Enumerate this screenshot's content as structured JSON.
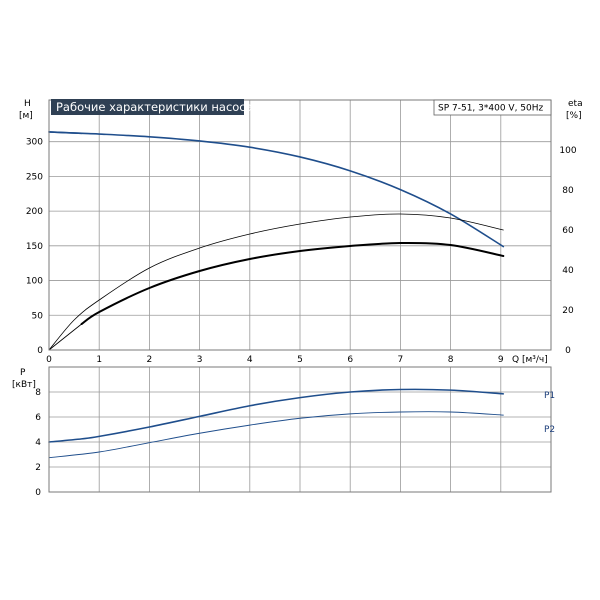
{
  "title": "Рабочие характеристики насоса",
  "model": "SP 7-51, 3*400 V, 50Hz",
  "colors": {
    "pump": "#1f4e8c",
    "efficiency": "#000000",
    "title_bg": "#2f4054",
    "grid": "#9a9a9a"
  },
  "chart_data": [
    {
      "type": "line",
      "x_label": "Q [м³/ч]",
      "x_ticks": [
        0,
        1,
        2,
        3,
        4,
        5,
        6,
        7,
        8,
        9
      ],
      "xlim": [
        0,
        10
      ],
      "y_label": "H",
      "y_unit": "[м]",
      "y_ticks": [
        0,
        50,
        100,
        150,
        200,
        250,
        300
      ],
      "ylim": [
        0,
        360
      ],
      "y2_label": "eta",
      "y2_unit": "[%]",
      "y2_ticks": [
        0,
        20,
        40,
        60,
        80,
        100
      ],
      "y2lim": [
        0,
        125
      ],
      "grid": true,
      "series": [
        {
          "axis": "left",
          "color": "#1f4e8c",
          "width": 1.6,
          "x": [
            0,
            0.65,
            1,
            2,
            3,
            4,
            5,
            6,
            7,
            8,
            9.05
          ],
          "y": [
            314,
            312,
            311,
            307,
            301,
            292,
            278,
            258,
            231,
            196,
            149
          ]
        },
        {
          "axis": "left",
          "color": "#1f4e8c",
          "width": 1.6,
          "dashed_until": 0.65,
          "x": [
            0,
            0.65
          ],
          "y": [
            314,
            312
          ]
        },
        {
          "axis": "right",
          "color": "#000000",
          "width": 0.8,
          "x": [
            0,
            0.5,
            1,
            2,
            3,
            4,
            5,
            6,
            7,
            8,
            9.05
          ],
          "y": [
            0,
            15,
            25,
            41,
            51,
            58,
            63,
            66.5,
            68,
            66,
            60
          ]
        },
        {
          "axis": "right",
          "color": "#000000",
          "width": 2,
          "x": [
            0.65,
            1,
            2,
            3,
            4,
            5,
            6,
            7,
            8,
            9.05
          ],
          "y": [
            13,
            19,
            31,
            39.5,
            45.5,
            49.5,
            52,
            53.5,
            52.5,
            47
          ]
        },
        {
          "axis": "right",
          "color": "#000000",
          "width": 0.8,
          "x": [
            0,
            0.65
          ],
          "y": [
            0,
            13
          ]
        }
      ]
    },
    {
      "type": "line",
      "y_label": "P",
      "y_unit": "[кВт]",
      "y_ticks": [
        0,
        2,
        4,
        6,
        8
      ],
      "ylim": [
        0,
        10
      ],
      "xlim": [
        0,
        10
      ],
      "grid": true,
      "series": [
        {
          "name": "P1",
          "color": "#1f4e8c",
          "width": 1.6,
          "x": [
            0,
            0.65,
            1,
            2,
            3,
            4,
            5,
            6,
            7,
            8,
            9.05
          ],
          "y": [
            4.0,
            4.25,
            4.45,
            5.2,
            6.05,
            6.9,
            7.55,
            8.0,
            8.2,
            8.15,
            7.85
          ]
        },
        {
          "name": "P2",
          "color": "#1f4e8c",
          "width": 0.9,
          "x": [
            0,
            1,
            2,
            3,
            4,
            5,
            6,
            7,
            8,
            9.05
          ],
          "y": [
            2.75,
            3.2,
            3.95,
            4.7,
            5.35,
            5.9,
            6.25,
            6.4,
            6.4,
            6.15
          ]
        }
      ]
    }
  ]
}
